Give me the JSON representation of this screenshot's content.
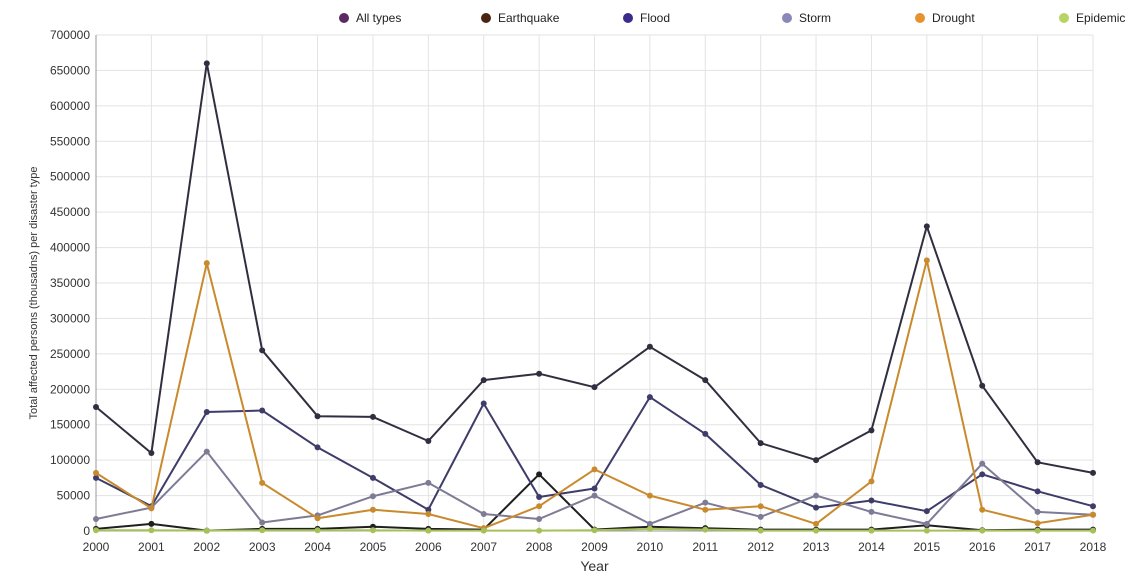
{
  "chart_data": {
    "type": "line",
    "title": "",
    "xlabel": "Year",
    "ylabel": "Total affected persons (thousadns) per  disaster type",
    "x": [
      2000,
      2001,
      2002,
      2003,
      2004,
      2005,
      2006,
      2007,
      2008,
      2009,
      2010,
      2011,
      2012,
      2013,
      2014,
      2015,
      2016,
      2017,
      2018
    ],
    "xlim": [
      2000,
      2018
    ],
    "ylim": [
      0,
      700000
    ],
    "yticks": [
      0,
      50000,
      100000,
      150000,
      200000,
      250000,
      300000,
      350000,
      400000,
      450000,
      500000,
      550000,
      600000,
      650000,
      700000
    ],
    "grid": true,
    "legend_position": "top",
    "series": [
      {
        "name": "All types",
        "marker_color": "#5b2a63",
        "line_color": "#2f2f3f",
        "values": [
          175000,
          110000,
          660000,
          255000,
          162000,
          161000,
          127000,
          213000,
          222000,
          203000,
          260000,
          213000,
          124000,
          100000,
          142000,
          430000,
          205000,
          97000,
          82000
        ]
      },
      {
        "name": "Earthquake",
        "marker_color": "#4a2410",
        "line_color": "#1f1f1f",
        "values": [
          3000,
          10000,
          500,
          3000,
          3000,
          6000,
          3000,
          2000,
          80000,
          2000,
          6000,
          4000,
          2000,
          2000,
          2000,
          8000,
          1000,
          2000,
          2000
        ]
      },
      {
        "name": "Flood",
        "marker_color": "#3b2c8c",
        "line_color": "#3e3c68",
        "values": [
          75000,
          35000,
          168000,
          170000,
          118000,
          75000,
          30000,
          180000,
          48000,
          60000,
          189000,
          137000,
          65000,
          33000,
          43000,
          28000,
          80000,
          56000,
          35000
        ]
      },
      {
        "name": "Storm",
        "marker_color": "#8a88b8",
        "line_color": "#7d7b95",
        "values": [
          17000,
          33000,
          112000,
          12000,
          22000,
          49000,
          68000,
          24000,
          17000,
          50000,
          10000,
          40000,
          20000,
          50000,
          27000,
          10000,
          95000,
          27000,
          23000
        ]
      },
      {
        "name": "Drought",
        "marker_color": "#e6932e",
        "line_color": "#c98a2e",
        "values": [
          82000,
          32000,
          378000,
          68000,
          18000,
          30000,
          24000,
          4000,
          35000,
          87000,
          50000,
          30000,
          35000,
          10000,
          70000,
          382000,
          30000,
          11000,
          23000
        ]
      },
      {
        "name": "Epidemic",
        "marker_color": "#b8d465",
        "line_color": "#a6c05a",
        "values": [
          1000,
          1000,
          500,
          1000,
          1000,
          1000,
          500,
          500,
          500,
          1000,
          3000,
          2000,
          500,
          500,
          500,
          500,
          500,
          500,
          500
        ]
      }
    ]
  }
}
